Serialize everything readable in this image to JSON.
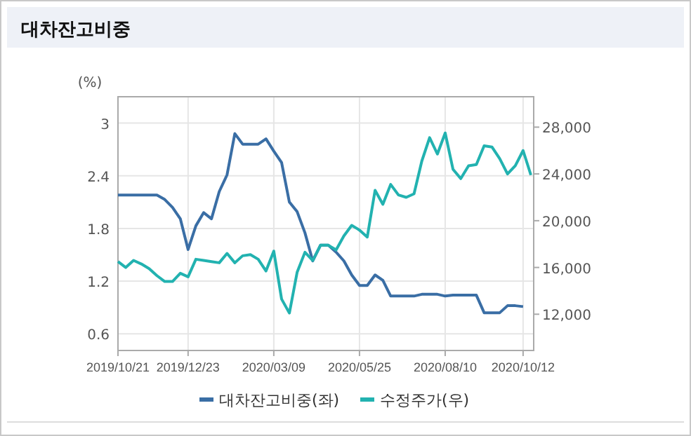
{
  "chart_data": {
    "type": "line",
    "title": "대차잔고비중",
    "ylabel": "(%)",
    "categories": [
      "2019/10/21",
      null,
      null,
      null,
      null,
      null,
      null,
      null,
      null,
      "2019/12/23",
      null,
      null,
      null,
      null,
      null,
      null,
      null,
      null,
      null,
      null,
      "2020/03/09",
      null,
      null,
      null,
      null,
      null,
      null,
      null,
      null,
      null,
      null,
      "2020/05/25",
      null,
      null,
      null,
      null,
      null,
      null,
      null,
      null,
      null,
      null,
      "2020/08/10",
      null,
      null,
      null,
      null,
      null,
      null,
      null,
      null,
      null,
      "2020/10/12",
      null
    ],
    "series": [
      {
        "name": "대차잔고비중(좌)",
        "color": "#3a6ea5",
        "values": [
          2.18,
          2.18,
          2.18,
          2.18,
          2.18,
          2.18,
          2.13,
          2.04,
          1.91,
          1.56,
          1.83,
          1.98,
          1.91,
          2.22,
          2.41,
          2.88,
          2.76,
          2.76,
          2.76,
          2.82,
          2.68,
          2.55,
          2.1,
          1.99,
          1.75,
          1.43,
          1.61,
          1.61,
          1.53,
          1.43,
          1.27,
          1.15,
          1.15,
          1.27,
          1.21,
          1.03,
          1.03,
          1.03,
          1.03,
          1.05,
          1.05,
          1.05,
          1.03,
          1.04,
          1.04,
          1.04,
          1.04,
          0.84,
          0.84,
          0.84,
          0.92,
          0.92,
          0.91,
          null
        ]
      },
      {
        "name": "수정주가(우)",
        "color": "#22b2b0",
        "axis": "y2",
        "values": [
          16500,
          16000,
          16600,
          16300,
          15900,
          15300,
          14800,
          14800,
          15500,
          15200,
          16700,
          16600,
          16500,
          16400,
          17200,
          16400,
          17000,
          17100,
          16700,
          15700,
          17400,
          13300,
          12100,
          15600,
          17300,
          16600,
          17900,
          17900,
          17500,
          18700,
          19600,
          19200,
          18600,
          22600,
          21400,
          23100,
          22200,
          22000,
          22300,
          25100,
          27100,
          25700,
          27500,
          24400,
          23600,
          24700,
          24800,
          26400,
          26300,
          25300,
          24000,
          24700,
          26000,
          23900
        ]
      }
    ],
    "ylim": [
      0.41,
      3.3
    ],
    "yticks": [
      0.6,
      1.2,
      1.8,
      2.4,
      3
    ],
    "y2lim": [
      8900,
      30600
    ],
    "y2ticks": [
      {
        "value": 12000,
        "label": "12,000"
      },
      {
        "value": 16000,
        "label": "16,000"
      },
      {
        "value": 20000,
        "label": "20,000"
      },
      {
        "value": 24000,
        "label": "24,000"
      },
      {
        "value": 28000,
        "label": "28,000"
      }
    ],
    "grid": true,
    "legend": "bottom",
    "marker": "none",
    "line_style": "solid"
  }
}
